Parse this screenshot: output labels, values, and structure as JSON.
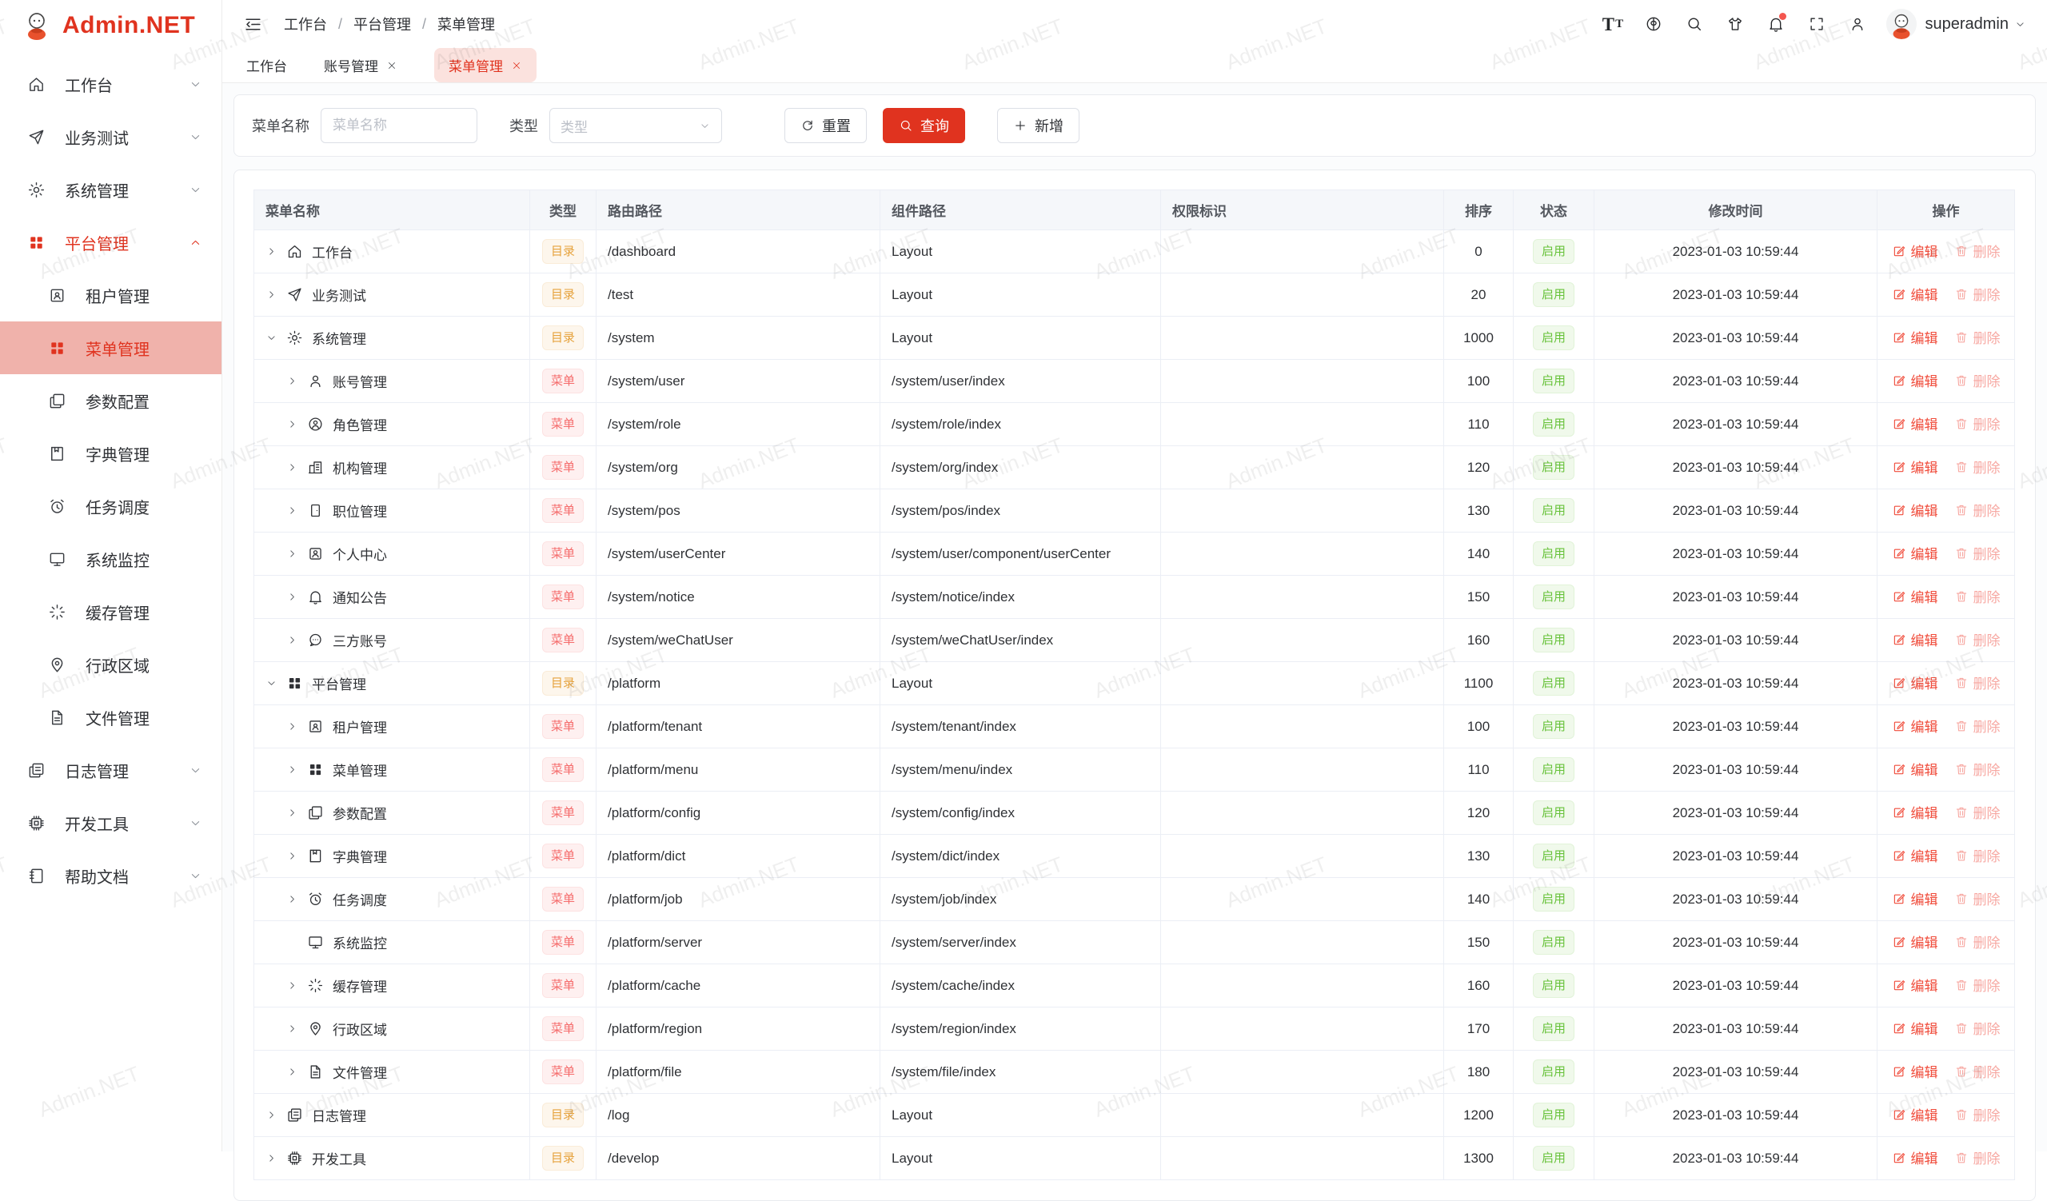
{
  "app": {
    "logo": "Admin.NET",
    "username": "superadmin"
  },
  "watermark": "Admin.NET",
  "colors": {
    "accent": "#e0331f",
    "sidebar-active-bg": "#f0b2ab",
    "tab-active-bg": "#fbe2de",
    "badge-dir-text": "#e6a23c",
    "badge-dir-bg": "#fdf6ec",
    "badge-dir-border": "#faecd8",
    "badge-menu-text": "#f56c6c",
    "badge-menu-bg": "#fef0f0",
    "badge-menu-border": "#fde2e2",
    "status-text": "#67c23a",
    "status-bg": "#f0f9eb",
    "status-border": "#e1f3d8",
    "edit-link": "#f04b3a",
    "delete-link": "#f7a8a2"
  },
  "sidebar": {
    "items": [
      {
        "label": "工作台",
        "icon": "home",
        "level": 0,
        "chevron": "down"
      },
      {
        "label": "业务测试",
        "icon": "send",
        "level": 0,
        "chevron": "down"
      },
      {
        "label": "系统管理",
        "icon": "gear",
        "level": 0,
        "chevron": "down"
      },
      {
        "label": "平台管理",
        "icon": "grid",
        "level": 0,
        "chevron": "up",
        "state": "expanded-red"
      },
      {
        "label": "租户管理",
        "icon": "tenant",
        "level": 1
      },
      {
        "label": "菜单管理",
        "icon": "grid",
        "level": 1,
        "state": "active"
      },
      {
        "label": "参数配置",
        "icon": "copy",
        "level": 1
      },
      {
        "label": "字典管理",
        "icon": "book",
        "level": 1
      },
      {
        "label": "任务调度",
        "icon": "alarm",
        "level": 1
      },
      {
        "label": "系统监控",
        "icon": "monitor",
        "level": 1
      },
      {
        "label": "缓存管理",
        "icon": "loading",
        "level": 1
      },
      {
        "label": "行政区域",
        "icon": "location",
        "level": 1
      },
      {
        "label": "文件管理",
        "icon": "file",
        "level": 1
      },
      {
        "label": "日志管理",
        "icon": "log",
        "level": 0,
        "chevron": "down"
      },
      {
        "label": "开发工具",
        "icon": "cpu",
        "level": 0,
        "chevron": "down"
      },
      {
        "label": "帮助文档",
        "icon": "notebook",
        "level": 0,
        "chevron": "down"
      }
    ]
  },
  "header": {
    "breadcrumb": [
      "工作台",
      "平台管理",
      "菜单管理"
    ],
    "separator": "/",
    "right_icons": [
      {
        "name": "font-size"
      },
      {
        "name": "language"
      },
      {
        "name": "search"
      },
      {
        "name": "theme"
      },
      {
        "name": "notification",
        "badge": true
      },
      {
        "name": "fullscreen"
      },
      {
        "name": "profile"
      }
    ],
    "username": "superadmin"
  },
  "tabs": [
    {
      "label": "工作台",
      "closable": false,
      "active": false
    },
    {
      "label": "账号管理",
      "closable": true,
      "active": false
    },
    {
      "label": "菜单管理",
      "closable": true,
      "active": true
    }
  ],
  "filters": {
    "name_label": "菜单名称",
    "name_placeholder": "菜单名称",
    "type_label": "类型",
    "type_placeholder": "类型",
    "reset": "重置",
    "query": "查询",
    "add": "新增"
  },
  "table": {
    "columns": [
      {
        "label": "菜单名称",
        "align": "left"
      },
      {
        "label": "类型",
        "align": "center"
      },
      {
        "label": "路由路径",
        "align": "left"
      },
      {
        "label": "组件路径",
        "align": "left"
      },
      {
        "label": "权限标识",
        "align": "left"
      },
      {
        "label": "排序",
        "align": "center"
      },
      {
        "label": "状态",
        "align": "center"
      },
      {
        "label": "修改时间",
        "align": "center"
      },
      {
        "label": "操作",
        "align": "center"
      }
    ],
    "type_labels": {
      "dir": "目录",
      "menu": "菜单"
    },
    "ops": {
      "edit": "编辑",
      "delete": "删除"
    },
    "rows": [
      {
        "name": "工作台",
        "icon": "home",
        "level": 0,
        "arrow": "right",
        "type": "dir",
        "route": "/dashboard",
        "component": "Layout",
        "perm": "",
        "sort": "0",
        "status": "启用",
        "time": "2023-01-03 10:59:44"
      },
      {
        "name": "业务测试",
        "icon": "send",
        "level": 0,
        "arrow": "right",
        "type": "dir",
        "route": "/test",
        "component": "Layout",
        "perm": "",
        "sort": "20",
        "status": "启用",
        "time": "2023-01-03 10:59:44"
      },
      {
        "name": "系统管理",
        "icon": "gear",
        "level": 0,
        "arrow": "down",
        "type": "dir",
        "route": "/system",
        "component": "Layout",
        "perm": "",
        "sort": "1000",
        "status": "启用",
        "time": "2023-01-03 10:59:44"
      },
      {
        "name": "账号管理",
        "icon": "user",
        "level": 1,
        "arrow": "right",
        "type": "menu",
        "route": "/system/user",
        "component": "/system/user/index",
        "perm": "",
        "sort": "100",
        "status": "启用",
        "time": "2023-01-03 10:59:44"
      },
      {
        "name": "角色管理",
        "icon": "role",
        "level": 1,
        "arrow": "right",
        "type": "menu",
        "route": "/system/role",
        "component": "/system/role/index",
        "perm": "",
        "sort": "110",
        "status": "启用",
        "time": "2023-01-03 10:59:44"
      },
      {
        "name": "机构管理",
        "icon": "org",
        "level": 1,
        "arrow": "right",
        "type": "menu",
        "route": "/system/org",
        "component": "/system/org/index",
        "perm": "",
        "sort": "120",
        "status": "启用",
        "time": "2023-01-03 10:59:44"
      },
      {
        "name": "职位管理",
        "icon": "pos",
        "level": 1,
        "arrow": "right",
        "type": "menu",
        "route": "/system/pos",
        "component": "/system/pos/index",
        "perm": "",
        "sort": "130",
        "status": "启用",
        "time": "2023-01-03 10:59:44"
      },
      {
        "name": "个人中心",
        "icon": "usercenter",
        "level": 1,
        "arrow": "right",
        "type": "menu",
        "route": "/system/userCenter",
        "component": "/system/user/component/userCenter",
        "perm": "",
        "sort": "140",
        "status": "启用",
        "time": "2023-01-03 10:59:44"
      },
      {
        "name": "通知公告",
        "icon": "bell",
        "level": 1,
        "arrow": "right",
        "type": "menu",
        "route": "/system/notice",
        "component": "/system/notice/index",
        "perm": "",
        "sort": "150",
        "status": "启用",
        "time": "2023-01-03 10:59:44"
      },
      {
        "name": "三方账号",
        "icon": "chat",
        "level": 1,
        "arrow": "right",
        "type": "menu",
        "route": "/system/weChatUser",
        "component": "/system/weChatUser/index",
        "perm": "",
        "sort": "160",
        "status": "启用",
        "time": "2023-01-03 10:59:44"
      },
      {
        "name": "平台管理",
        "icon": "grid",
        "level": 0,
        "arrow": "down",
        "type": "dir",
        "route": "/platform",
        "component": "Layout",
        "perm": "",
        "sort": "1100",
        "status": "启用",
        "time": "2023-01-03 10:59:44"
      },
      {
        "name": "租户管理",
        "icon": "tenant",
        "level": 1,
        "arrow": "right",
        "type": "menu",
        "route": "/platform/tenant",
        "component": "/system/tenant/index",
        "perm": "",
        "sort": "100",
        "status": "启用",
        "time": "2023-01-03 10:59:44"
      },
      {
        "name": "菜单管理",
        "icon": "grid",
        "level": 1,
        "arrow": "right",
        "type": "menu",
        "route": "/platform/menu",
        "component": "/system/menu/index",
        "perm": "",
        "sort": "110",
        "status": "启用",
        "time": "2023-01-03 10:59:44"
      },
      {
        "name": "参数配置",
        "icon": "copy",
        "level": 1,
        "arrow": "right",
        "type": "menu",
        "route": "/platform/config",
        "component": "/system/config/index",
        "perm": "",
        "sort": "120",
        "status": "启用",
        "time": "2023-01-03 10:59:44"
      },
      {
        "name": "字典管理",
        "icon": "book",
        "level": 1,
        "arrow": "right",
        "type": "menu",
        "route": "/platform/dict",
        "component": "/system/dict/index",
        "perm": "",
        "sort": "130",
        "status": "启用",
        "time": "2023-01-03 10:59:44"
      },
      {
        "name": "任务调度",
        "icon": "alarm",
        "level": 1,
        "arrow": "right",
        "type": "menu",
        "route": "/platform/job",
        "component": "/system/job/index",
        "perm": "",
        "sort": "140",
        "status": "启用",
        "time": "2023-01-03 10:59:44"
      },
      {
        "name": "系统监控",
        "icon": "monitor",
        "level": 1,
        "arrow": "none",
        "type": "menu",
        "route": "/platform/server",
        "component": "/system/server/index",
        "perm": "",
        "sort": "150",
        "status": "启用",
        "time": "2023-01-03 10:59:44"
      },
      {
        "name": "缓存管理",
        "icon": "loading",
        "level": 1,
        "arrow": "right",
        "type": "menu",
        "route": "/platform/cache",
        "component": "/system/cache/index",
        "perm": "",
        "sort": "160",
        "status": "启用",
        "time": "2023-01-03 10:59:44"
      },
      {
        "name": "行政区域",
        "icon": "location",
        "level": 1,
        "arrow": "right",
        "type": "menu",
        "route": "/platform/region",
        "component": "/system/region/index",
        "perm": "",
        "sort": "170",
        "status": "启用",
        "time": "2023-01-03 10:59:44"
      },
      {
        "name": "文件管理",
        "icon": "file",
        "level": 1,
        "arrow": "right",
        "type": "menu",
        "route": "/platform/file",
        "component": "/system/file/index",
        "perm": "",
        "sort": "180",
        "status": "启用",
        "time": "2023-01-03 10:59:44"
      },
      {
        "name": "日志管理",
        "icon": "log",
        "level": 0,
        "arrow": "right",
        "type": "dir",
        "route": "/log",
        "component": "Layout",
        "perm": "",
        "sort": "1200",
        "status": "启用",
        "time": "2023-01-03 10:59:44"
      },
      {
        "name": "开发工具",
        "icon": "cpu",
        "level": 0,
        "arrow": "right",
        "type": "dir",
        "route": "/develop",
        "component": "Layout",
        "perm": "",
        "sort": "1300",
        "status": "启用",
        "time": "2023-01-03 10:59:44"
      }
    ]
  }
}
